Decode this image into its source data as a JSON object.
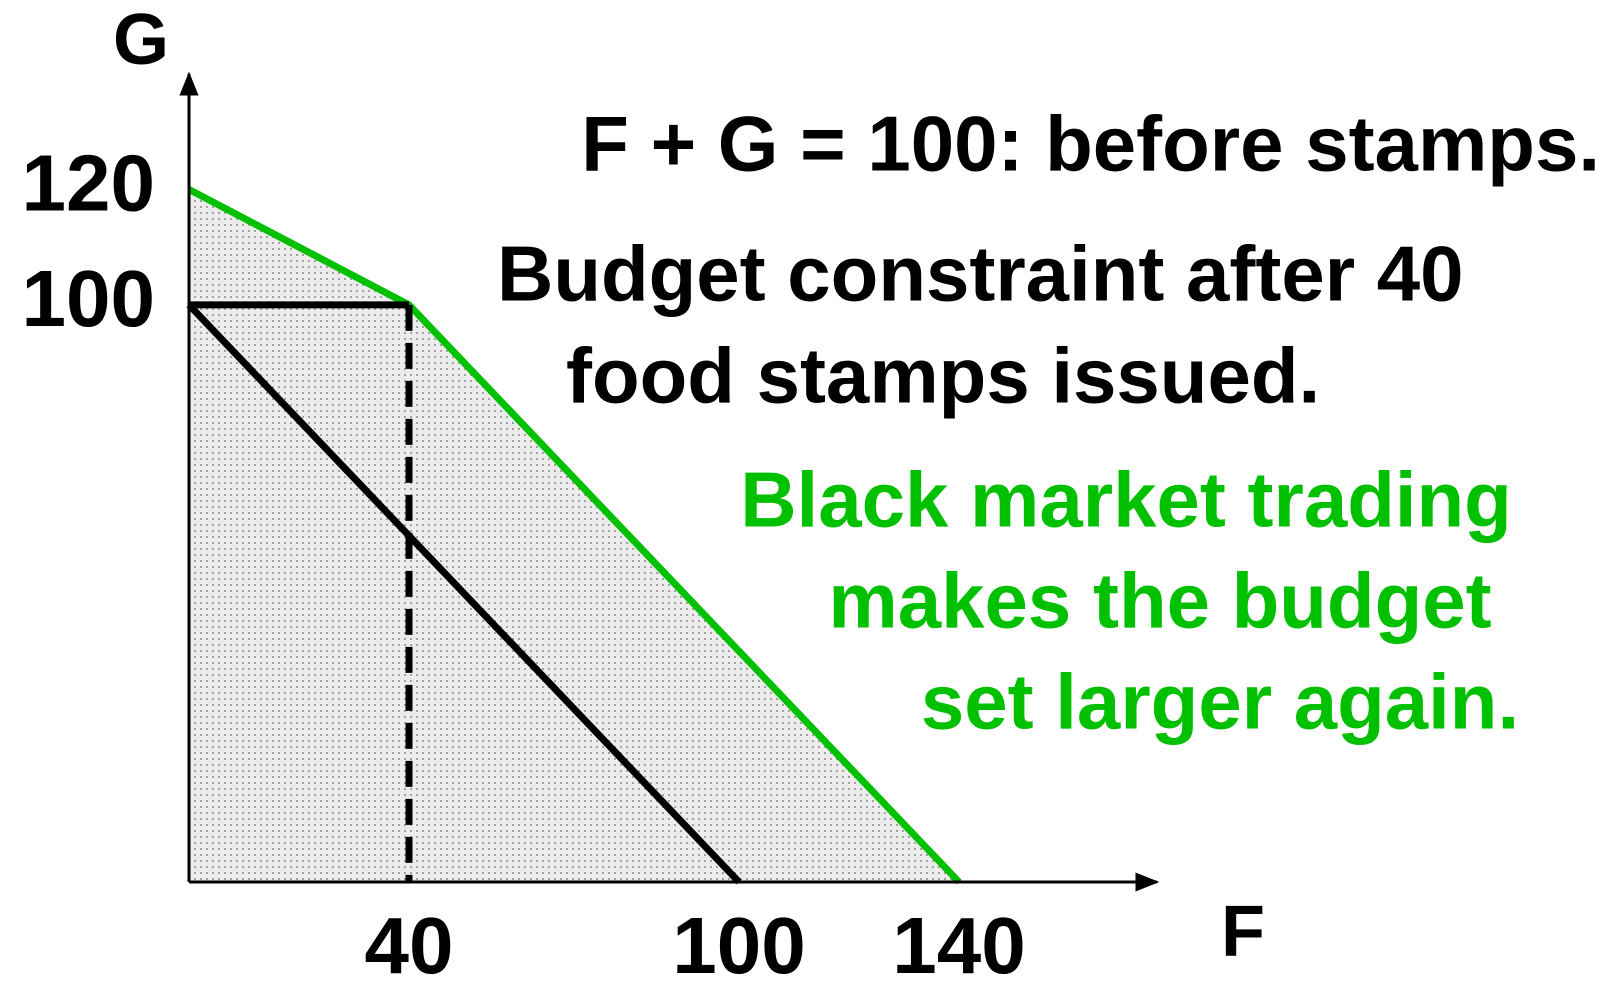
{
  "chart_data": {
    "type": "line",
    "x_label": "F",
    "y_label": "G",
    "xlim": [
      0,
      176
    ],
    "ylim": [
      0,
      140
    ],
    "xticks": [
      40,
      100,
      140
    ],
    "yticks": [
      100,
      120
    ],
    "series": [
      {
        "color": "#00c000",
        "fill_pattern": "dots",
        "x": [
          0,
          40,
          140
        ],
        "values": [
          120,
          100,
          0
        ]
      },
      {
        "color": "#000000",
        "x": [
          0,
          100
        ],
        "values": [
          100,
          0
        ]
      },
      {
        "color": "#000000",
        "x": [
          0,
          40
        ],
        "values": [
          100,
          100
        ]
      },
      {
        "color": "#000000",
        "dashed": true,
        "x": [
          40,
          40
        ],
        "values": [
          100,
          0
        ]
      }
    ],
    "annotations": [
      {
        "color": "#000000",
        "lines": [
          "F + G = 100: before stamps."
        ]
      },
      {
        "color": "#000000",
        "lines": [
          "Budget constraint after 40",
          "food stamps issued."
        ]
      },
      {
        "color": "#00c000",
        "lines": [
          "Black market trading",
          "makes the budget",
          "set larger again."
        ]
      }
    ]
  }
}
